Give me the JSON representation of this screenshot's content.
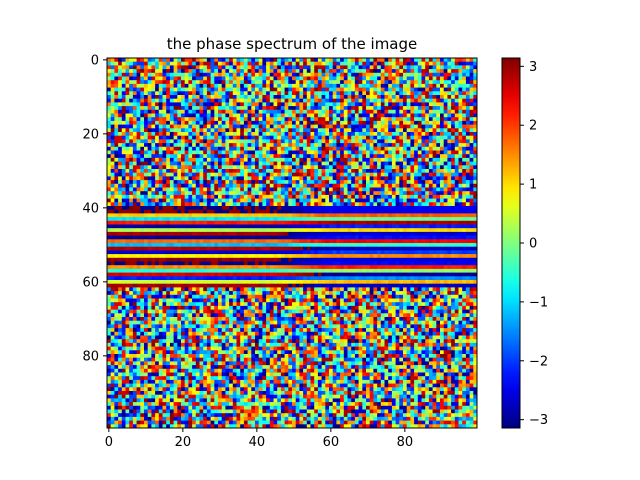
{
  "chart_data": {
    "type": "heatmap",
    "title": "the phase spectrum of the image",
    "xlabel": "",
    "ylabel": "",
    "grid": false,
    "x_ticks": [
      "0",
      "20",
      "40",
      "60",
      "80"
    ],
    "y_ticks": [
      "0",
      "20",
      "40",
      "60",
      "80"
    ],
    "x_range": [
      -0.5,
      99.5
    ],
    "y_range": [
      99.5,
      -0.5
    ],
    "matrix_size": [
      100,
      100
    ],
    "value_range": [
      -3.14159,
      3.14159
    ],
    "colormap": "jet",
    "colorbar": {
      "ticks": [
        "3",
        "2",
        "1",
        "0",
        "−1",
        "−2",
        "−3"
      ],
      "tick_values": [
        3,
        2,
        1,
        0,
        -1,
        -2,
        -3
      ],
      "position": "right"
    },
    "pattern": {
      "structured_band_rows": [
        40,
        61
      ],
      "outside_band": "random phase noise"
    }
  }
}
